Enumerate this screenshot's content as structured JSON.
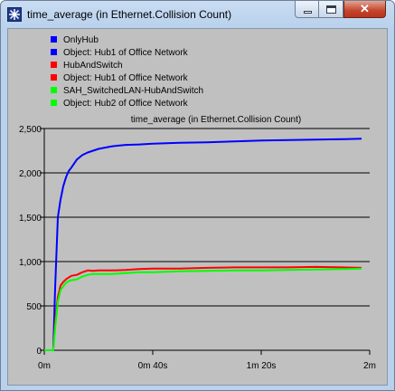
{
  "window": {
    "title": "time_average (in Ethernet.Collision Count)",
    "controls": {
      "minimize": "minimize",
      "maximize": "maximize",
      "close": "✕"
    }
  },
  "chart_data": {
    "type": "line",
    "title": "time_average (in Ethernet.Collision Count)",
    "xlabel": "",
    "ylabel": "",
    "xlim": [
      0,
      120
    ],
    "ylim": [
      0,
      2500
    ],
    "x_ticks": [
      0,
      40,
      80,
      120
    ],
    "x_tick_labels": [
      "0m",
      "0m 40s",
      "1m 20s",
      "2m"
    ],
    "y_ticks": [
      0,
      500,
      1000,
      1500,
      2000,
      2500
    ],
    "y_tick_labels": [
      "0",
      "500",
      "1,000",
      "1,500",
      "2,000",
      "2,500"
    ],
    "grid": "horizontal",
    "legend_position": "top-left",
    "legend": [
      {
        "label": "OnlyHub",
        "color": "#0000ff"
      },
      {
        "label": "Object: Hub1 of Office Network",
        "color": "#0000ff"
      },
      {
        "label": "HubAndSwitch",
        "color": "#ff0000"
      },
      {
        "label": "Object: Hub1 of Office Network",
        "color": "#ff0000"
      },
      {
        "label": "SAH_SwitchedLAN-HubAndSwitch",
        "color": "#00ff00"
      },
      {
        "label": "Object: Hub2 of Office Network",
        "color": "#00ff00"
      }
    ],
    "series": [
      {
        "name": "OnlyHub - Object: Hub1 of Office Network",
        "color": "#0000ff",
        "x": [
          0,
          3.3,
          4,
          5,
          6,
          7,
          8,
          9,
          10,
          12,
          14,
          16,
          18,
          20,
          25,
          30,
          35,
          40,
          50,
          60,
          70,
          80,
          90,
          100,
          110,
          117
        ],
        "y": [
          0,
          0,
          700,
          1500,
          1700,
          1850,
          1950,
          2020,
          2060,
          2150,
          2200,
          2230,
          2250,
          2270,
          2300,
          2315,
          2320,
          2330,
          2340,
          2345,
          2355,
          2365,
          2370,
          2375,
          2380,
          2385
        ]
      },
      {
        "name": "HubAndSwitch - Object: Hub1 of Office Network",
        "color": "#ff0000",
        "x": [
          0,
          3.3,
          4,
          5,
          6,
          7,
          8,
          9,
          10,
          12,
          14,
          16,
          18,
          20,
          25,
          30,
          35,
          40,
          50,
          60,
          70,
          80,
          90,
          100,
          110,
          117
        ],
        "y": [
          0,
          0,
          320,
          600,
          730,
          770,
          800,
          820,
          840,
          850,
          880,
          900,
          895,
          900,
          900,
          905,
          915,
          920,
          920,
          930,
          935,
          935,
          935,
          940,
          935,
          930
        ]
      },
      {
        "name": "SAH_SwitchedLAN-HubAndSwitch - Object: Hub2 of Office Network",
        "color": "#00ff00",
        "x": [
          0,
          3.3,
          4,
          5,
          6,
          7,
          8,
          9,
          10,
          12,
          14,
          16,
          18,
          20,
          25,
          30,
          35,
          40,
          50,
          60,
          70,
          80,
          90,
          100,
          110,
          117
        ],
        "y": [
          0,
          0,
          250,
          550,
          680,
          720,
          760,
          780,
          790,
          800,
          830,
          850,
          860,
          860,
          860,
          870,
          880,
          880,
          890,
          895,
          900,
          900,
          905,
          910,
          915,
          920
        ]
      }
    ]
  }
}
